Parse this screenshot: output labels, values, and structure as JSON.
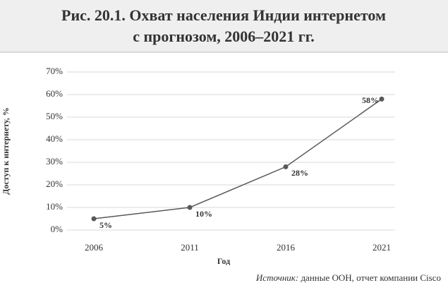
{
  "chart_data": {
    "type": "line",
    "title_lines": [
      "Рис. 20.1. Охват населения Индии интернетом",
      "с прогнозом, 2006–2021 гг."
    ],
    "x_label": "Год",
    "y_label": "Доступ к интернету, %",
    "source_label": "Источник:",
    "source": "данные ООН, отчет компании Cisco",
    "categories": [
      "2006",
      "2011",
      "2016",
      "2021"
    ],
    "series": [
      {
        "name": "Доступ к интернету",
        "color": "#595959",
        "values": [
          5,
          10,
          28,
          58
        ],
        "value_labels": [
          "5%",
          "10%",
          "28%",
          "58%"
        ]
      }
    ],
    "ylim": [
      0,
      70
    ],
    "yticks": [
      {
        "value": 0,
        "label": "0%"
      },
      {
        "value": 10,
        "label": "10%"
      },
      {
        "value": 20,
        "label": "20%"
      },
      {
        "value": 30,
        "label": "30%"
      },
      {
        "value": 40,
        "label": "40%"
      },
      {
        "value": 50,
        "label": "50%"
      },
      {
        "value": 60,
        "label": "60%"
      },
      {
        "value": 70,
        "label": "70%"
      }
    ],
    "grid": true
  }
}
